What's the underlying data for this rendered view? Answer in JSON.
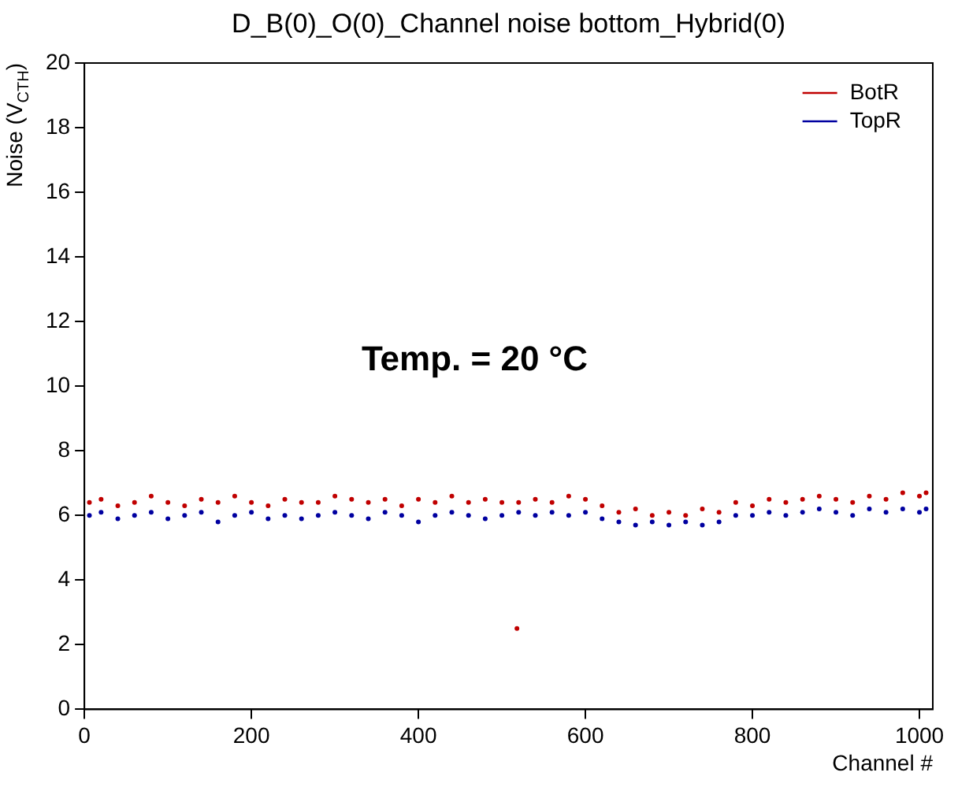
{
  "chart_data": {
    "type": "scatter",
    "title": "D_B(0)_O(0)_Channel noise bottom_Hybrid(0)",
    "xlabel": "Channel #",
    "ylabel": "Noise (V$_{CTH}$)",
    "xlim": [
      0,
      1016
    ],
    "xticks": [
      0,
      200,
      400,
      600,
      800,
      1000
    ],
    "ylim": [
      0,
      20
    ],
    "yticks": [
      0,
      2,
      4,
      6,
      8,
      10,
      12,
      14,
      16,
      18,
      20
    ],
    "grid": false,
    "legend": "top right",
    "marker": "circle",
    "annotations": [
      "Temp. = 20 °C"
    ],
    "series": [
      {
        "name": "BotR",
        "color": "#c00000",
        "x": [
          6,
          20,
          40,
          60,
          80,
          100,
          120,
          140,
          160,
          180,
          200,
          220,
          240,
          260,
          280,
          300,
          320,
          340,
          360,
          380,
          400,
          420,
          440,
          460,
          480,
          500,
          518,
          520,
          540,
          560,
          580,
          600,
          620,
          640,
          660,
          680,
          700,
          720,
          740,
          760,
          780,
          800,
          820,
          840,
          860,
          880,
          900,
          920,
          940,
          960,
          980,
          1000,
          1008
        ],
        "values": [
          6.4,
          6.5,
          6.3,
          6.4,
          6.6,
          6.4,
          6.3,
          6.5,
          6.4,
          6.6,
          6.4,
          6.3,
          6.5,
          6.4,
          6.4,
          6.6,
          6.5,
          6.4,
          6.5,
          6.3,
          6.5,
          6.4,
          6.6,
          6.4,
          6.5,
          6.4,
          2.5,
          6.4,
          6.5,
          6.4,
          6.6,
          6.5,
          6.3,
          6.1,
          6.2,
          6.0,
          6.1,
          6.0,
          6.2,
          6.1,
          6.4,
          6.3,
          6.5,
          6.4,
          6.5,
          6.6,
          6.5,
          6.4,
          6.6,
          6.5,
          6.7,
          6.6,
          6.7
        ]
      },
      {
        "name": "TopR",
        "color": "#0000a0",
        "x": [
          6,
          20,
          40,
          60,
          80,
          100,
          120,
          140,
          160,
          180,
          200,
          220,
          240,
          260,
          280,
          300,
          320,
          340,
          360,
          380,
          400,
          420,
          440,
          460,
          480,
          500,
          520,
          540,
          560,
          580,
          600,
          620,
          640,
          660,
          680,
          700,
          720,
          740,
          760,
          780,
          800,
          820,
          840,
          860,
          880,
          900,
          920,
          940,
          960,
          980,
          1000,
          1008
        ],
        "values": [
          6.0,
          6.1,
          5.9,
          6.0,
          6.1,
          5.9,
          6.0,
          6.1,
          5.8,
          6.0,
          6.1,
          5.9,
          6.0,
          5.9,
          6.0,
          6.1,
          6.0,
          5.9,
          6.1,
          6.0,
          5.8,
          6.0,
          6.1,
          6.0,
          5.9,
          6.0,
          6.1,
          6.0,
          6.1,
          6.0,
          6.1,
          5.9,
          5.8,
          5.7,
          5.8,
          5.7,
          5.8,
          5.7,
          5.8,
          6.0,
          6.0,
          6.1,
          6.0,
          6.1,
          6.2,
          6.1,
          6.0,
          6.2,
          6.1,
          6.2,
          6.1,
          6.2
        ]
      }
    ]
  }
}
